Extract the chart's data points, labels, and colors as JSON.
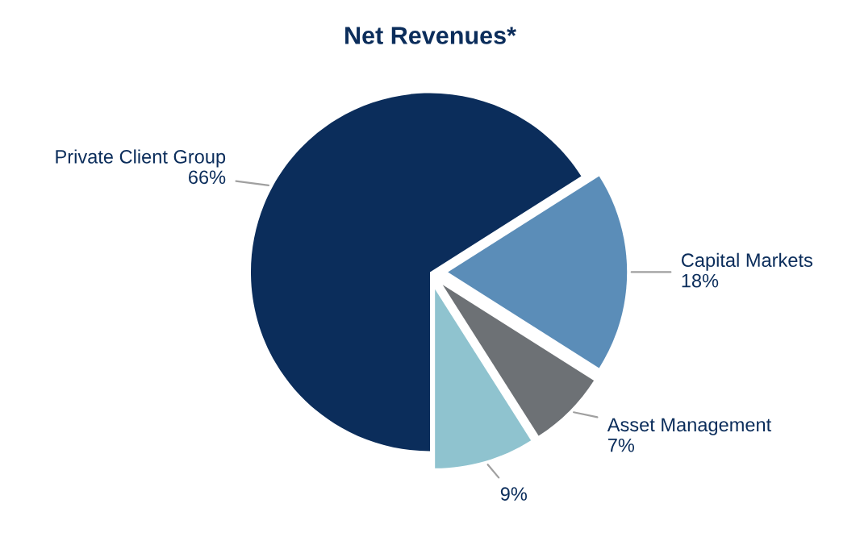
{
  "chart_data": {
    "type": "pie",
    "title": "Net Revenues*",
    "categories": [
      "Private Client Group",
      "Capital Markets",
      "Asset Management",
      null
    ],
    "values": [
      66,
      18,
      7,
      9
    ],
    "value_labels": [
      "66%",
      "18%",
      "7%",
      "9%"
    ],
    "colors": [
      "#0b2d5b",
      "#5b8db8",
      "#6d7175",
      "#8fc3cf"
    ],
    "legend": false
  }
}
